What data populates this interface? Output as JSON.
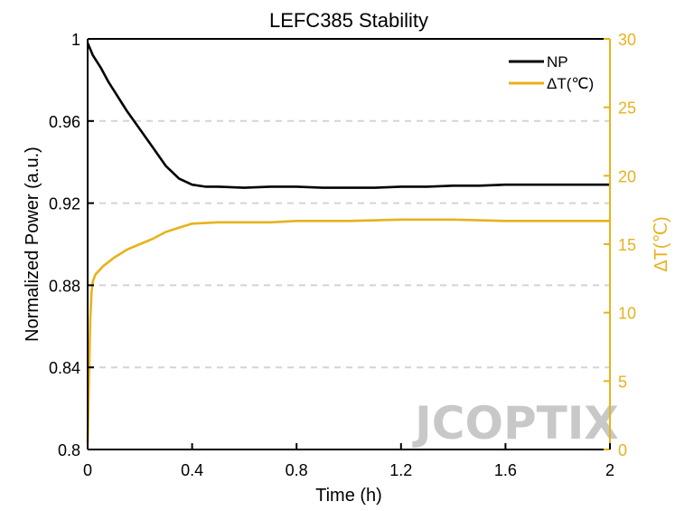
{
  "chart_data": {
    "type": "line",
    "title": "LEFC385 Stability",
    "xlabel": "Time (h)",
    "ylabel": "Normalized Power (a.u.)",
    "y2label": "ΔT(℃)",
    "xlim": [
      0,
      2
    ],
    "ylim": [
      0.8,
      1.0
    ],
    "y2lim": [
      0,
      30
    ],
    "x_ticks": [
      0,
      0.4,
      0.8,
      1.2,
      1.6,
      2
    ],
    "x_tick_labels": [
      "0",
      "0.4",
      "0.8",
      "1.2",
      "1.6",
      "2"
    ],
    "y_ticks": [
      0.8,
      0.84,
      0.88,
      0.92,
      0.96,
      1.0
    ],
    "y_tick_labels": [
      "0.8",
      "0.84",
      "0.88",
      "0.92",
      "0.96",
      "1"
    ],
    "y2_ticks": [
      0,
      5,
      10,
      15,
      20,
      25,
      30
    ],
    "y2_tick_labels": [
      "0",
      "5",
      "10",
      "15",
      "20",
      "25",
      "30"
    ],
    "grid": "horizontal dashed",
    "legend_position": "top-right",
    "series": [
      {
        "name": "NP",
        "axis": "left",
        "color": "#000000",
        "x": [
          0,
          0.02,
          0.05,
          0.08,
          0.1,
          0.15,
          0.2,
          0.25,
          0.3,
          0.35,
          0.4,
          0.45,
          0.5,
          0.6,
          0.7,
          0.8,
          0.9,
          1.0,
          1.1,
          1.2,
          1.3,
          1.4,
          1.5,
          1.6,
          1.7,
          1.8,
          1.9,
          2.0
        ],
        "values": [
          0.998,
          0.992,
          0.986,
          0.979,
          0.975,
          0.965,
          0.956,
          0.947,
          0.938,
          0.932,
          0.929,
          0.928,
          0.928,
          0.9275,
          0.928,
          0.928,
          0.9275,
          0.9275,
          0.9275,
          0.928,
          0.928,
          0.9285,
          0.9285,
          0.929,
          0.929,
          0.929,
          0.929,
          0.929
        ]
      },
      {
        "name": "ΔT(℃)",
        "axis": "right",
        "color": "#E8B21C",
        "x": [
          0,
          0.005,
          0.01,
          0.015,
          0.02,
          0.03,
          0.04,
          0.06,
          0.08,
          0.1,
          0.15,
          0.2,
          0.25,
          0.3,
          0.35,
          0.4,
          0.5,
          0.6,
          0.7,
          0.8,
          0.9,
          1.0,
          1.2,
          1.4,
          1.6,
          1.8,
          2.0
        ],
        "values": [
          0.5,
          5,
          9.5,
          11.5,
          12.3,
          12.8,
          13.0,
          13.4,
          13.7,
          14.0,
          14.6,
          15.0,
          15.4,
          15.9,
          16.2,
          16.5,
          16.6,
          16.6,
          16.6,
          16.7,
          16.7,
          16.7,
          16.8,
          16.8,
          16.7,
          16.7,
          16.7
        ]
      }
    ],
    "legend": [
      {
        "label": "NP",
        "color": "#000000"
      },
      {
        "label": "ΔT(℃)",
        "color": "#E8B21C"
      }
    ],
    "watermark": "JCOPTIX"
  }
}
